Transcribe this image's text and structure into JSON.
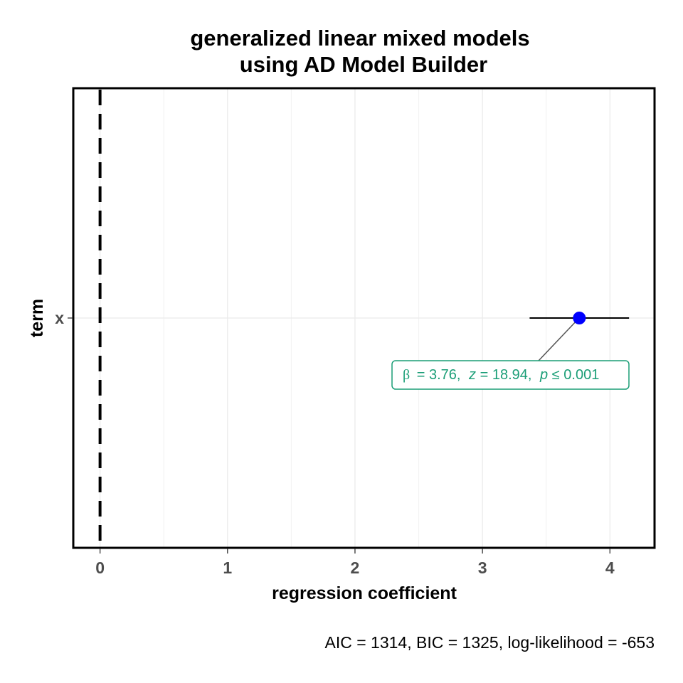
{
  "chart_data": {
    "type": "scatter",
    "title_lines": [
      "generalized linear mixed models",
      "using AD Model Builder"
    ],
    "xlabel": "regression coefficient",
    "ylabel": "term",
    "xlim": [
      -0.21,
      4.35
    ],
    "x_ticks": [
      0,
      1,
      2,
      3,
      4
    ],
    "x_tick_labels": [
      "0",
      "1",
      "2",
      "3",
      "4"
    ],
    "x_minor_gridlines": [
      0.5,
      1.5,
      2.5,
      3.5
    ],
    "categories": [
      "x"
    ],
    "estimates": [
      {
        "term": "x",
        "estimate": 3.76,
        "conf_low": 3.37,
        "conf_high": 4.15
      }
    ],
    "reference_line": 0,
    "point_color": "#0000ff",
    "annotation": {
      "beta": "β",
      "beta_value": "3.76",
      "z": "z",
      "z_value": "18.94",
      "p": "p",
      "p_relation": "≤",
      "p_value": "0.001",
      "color": "#1b9e77"
    },
    "caption": "AIC = 1314, BIC = 1325, log-likelihood = -653",
    "grid": true,
    "legend": "none"
  }
}
